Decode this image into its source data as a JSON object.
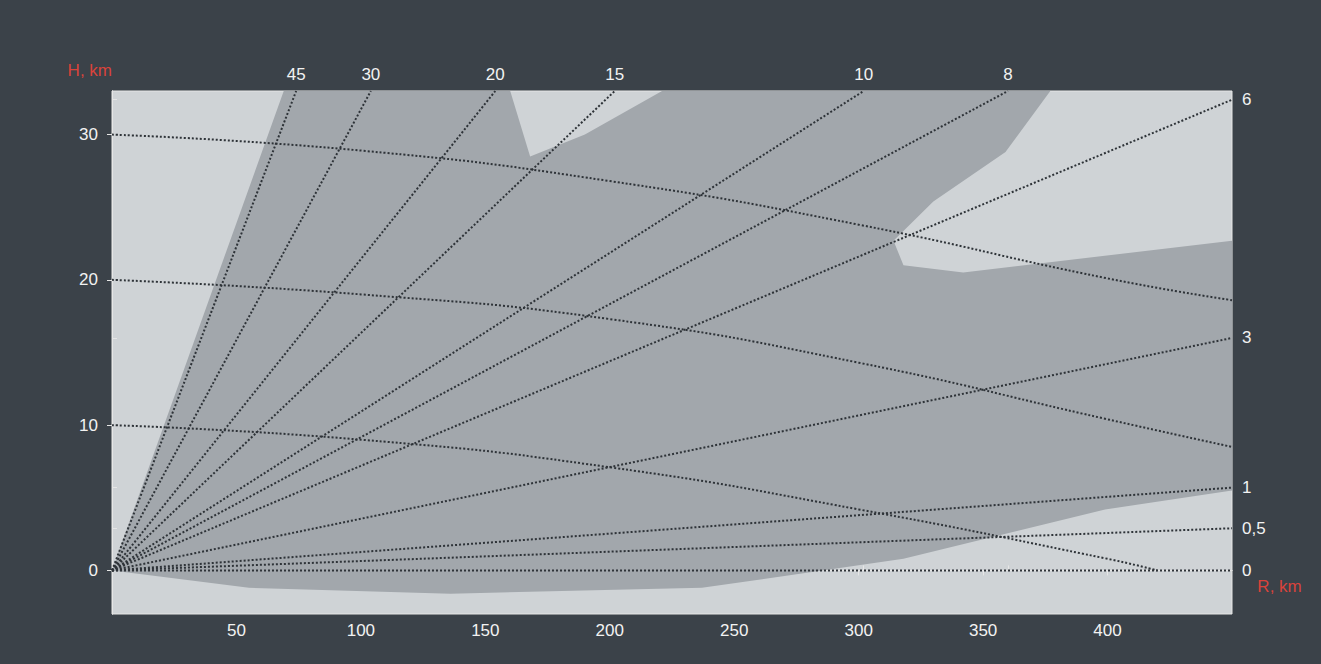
{
  "chart_data": {
    "type": "line",
    "x_label": "R, km",
    "y_label": "H, km",
    "xlim": [
      0,
      450
    ],
    "xticks": [
      50,
      100,
      150,
      200,
      250,
      300,
      350,
      400
    ],
    "ylim": [
      -3,
      33
    ],
    "yticks": [
      0,
      10,
      20,
      30
    ],
    "grid": false,
    "coverage": {
      "color": "#a2a7ac",
      "points": [
        [
          0,
          0
        ],
        [
          69,
          33
        ],
        [
          160,
          33
        ],
        [
          168,
          28.5
        ],
        [
          190,
          30
        ],
        [
          221,
          33
        ],
        [
          377,
          33
        ],
        [
          359,
          28.8
        ],
        [
          330,
          25.4
        ],
        [
          314,
          22.7
        ],
        [
          318,
          21
        ],
        [
          342,
          20.5
        ],
        [
          450,
          22.7
        ],
        [
          450,
          5.5
        ],
        [
          399,
          4.2
        ],
        [
          318,
          0.8
        ],
        [
          237,
          -1.2
        ],
        [
          136,
          -1.6
        ],
        [
          55,
          -1.2
        ]
      ]
    },
    "series": [
      {
        "line_style": "dotted",
        "color": "#2e3338",
        "x": [
          0,
          100,
          200,
          300,
          400,
          450
        ],
        "values": [
          30,
          28.9,
          26.8,
          23.8,
          20.1,
          18.6
        ]
      },
      {
        "line_style": "dotted",
        "color": "#2e3338",
        "x": [
          0,
          100,
          200,
          300,
          400,
          450
        ],
        "values": [
          20,
          19.0,
          17.3,
          14.3,
          10.4,
          8.5
        ]
      },
      {
        "line_style": "dotted",
        "color": "#2e3338",
        "x": [
          0,
          100,
          200,
          300,
          400,
          420
        ],
        "values": [
          10,
          9.0,
          7.1,
          4.2,
          0.8,
          0
        ]
      }
    ],
    "elevation_rays": {
      "line_style": "dotted",
      "color": "#2e3338",
      "top": [
        {
          "angle": 45,
          "R": 74
        },
        {
          "angle": 30,
          "R": 104
        },
        {
          "angle": 20,
          "R": 154
        },
        {
          "angle": 15,
          "R": 202
        },
        {
          "angle": 10,
          "R": 302
        },
        {
          "angle": 8,
          "R": 360
        }
      ],
      "right": [
        {
          "angle": 6,
          "H": 32.4
        },
        {
          "angle": 3,
          "H": 16.0
        },
        {
          "angle": 1,
          "H": 5.7
        },
        {
          "angle": 0.5,
          "label": "0,5",
          "H": 2.9
        },
        {
          "angle": 0,
          "H": 0
        }
      ]
    }
  }
}
